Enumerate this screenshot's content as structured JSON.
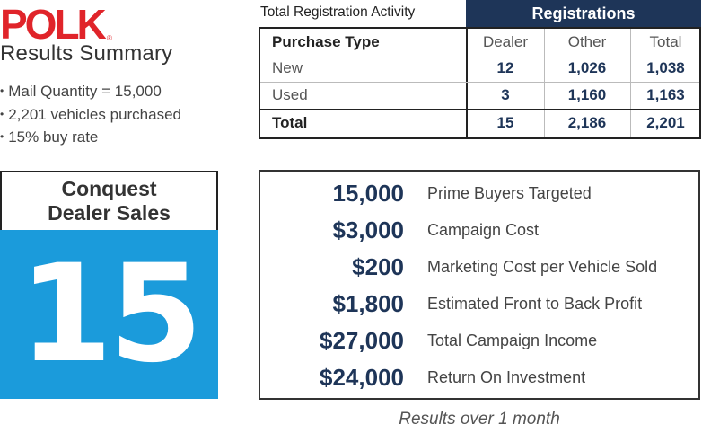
{
  "brand": {
    "logo_text": "POLK",
    "registered_mark": "®",
    "accent_color": "#e0242a"
  },
  "summary": {
    "title": "Results Summary",
    "bullets": [
      "Mail Quantity = 15,000",
      "2,201 vehicles purchased",
      "15% buy rate"
    ]
  },
  "registrations": {
    "caption": "Total Registration Activity",
    "header": "Registrations",
    "header_color": "#1e3558",
    "columns": [
      "Purchase Type",
      "Dealer",
      "Other",
      "Total"
    ],
    "rows": [
      {
        "type": "New",
        "dealer": "12",
        "other": "1,026",
        "total": "1,038"
      },
      {
        "type": "Used",
        "dealer": "3",
        "other": "1,160",
        "total": "1,163"
      },
      {
        "type": "Total",
        "dealer": "15",
        "other": "2,186",
        "total": "2,201"
      }
    ]
  },
  "conquest": {
    "line1": "Conquest",
    "line2": "Dealer Sales",
    "value": "15",
    "color": "#1b9bdb"
  },
  "metrics": [
    {
      "value": "15,000",
      "label": "Prime Buyers Targeted"
    },
    {
      "value": "$3,000",
      "label": "Campaign Cost"
    },
    {
      "value": "$200",
      "label": "Marketing Cost per Vehicle Sold"
    },
    {
      "value": "$1,800",
      "label": "Estimated Front to Back Profit"
    },
    {
      "value": "$27,000",
      "label": "Total Campaign Income"
    },
    {
      "value": "$24,000",
      "label": "Return On Investment"
    }
  ],
  "footnote": "Results over 1 month"
}
